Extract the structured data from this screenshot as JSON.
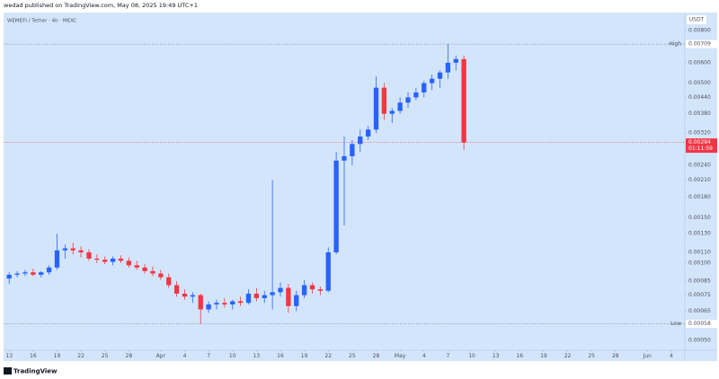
{
  "header": "wedad published on TradingView.com, May 08, 2025 19:49 UTC+1",
  "footer": "TradingView",
  "chart_data": {
    "type": "candlestick",
    "title": "WEMEFI / Tether · 4h · MEXC",
    "y_unit": "USDT",
    "log_scale": true,
    "grid": false,
    "background": "#d3e5fb",
    "up_color": "#2962ff",
    "down_color": "#f23645",
    "x": [
      0,
      1,
      2,
      3,
      4,
      5,
      6,
      7,
      8,
      9,
      10,
      11,
      12,
      13,
      14,
      15,
      16,
      17,
      18,
      19,
      20,
      21,
      22,
      23,
      24,
      25,
      26,
      27,
      28,
      29,
      30,
      31,
      32,
      33,
      34,
      35,
      36,
      37,
      38,
      39,
      40,
      41,
      42,
      43,
      44,
      45,
      46,
      47,
      48,
      49,
      50,
      51,
      52,
      53,
      54,
      55,
      56,
      57
    ],
    "open": [
      0.00087,
      0.0009,
      0.00091,
      0.00092,
      0.0009,
      0.00092,
      0.00096,
      0.00112,
      0.00114,
      0.00112,
      0.0011,
      0.00104,
      0.00103,
      0.00101,
      0.00104,
      0.00102,
      0.00098,
      0.00096,
      0.00093,
      0.00091,
      0.00088,
      0.00082,
      0.00076,
      0.00074,
      0.00075,
      0.00066,
      0.00069,
      0.0007,
      0.00069,
      0.00071,
      0.0007,
      0.00076,
      0.00073,
      0.00075,
      0.00077,
      0.0008,
      0.00068,
      0.00075,
      0.00082,
      0.00079,
      0.00078,
      0.0011,
      0.0025,
      0.0026,
      0.0029,
      0.0031,
      0.0033,
      0.0048,
      0.0038,
      0.0039,
      0.0042,
      0.0044,
      0.0046,
      0.005,
      0.0052,
      0.0055,
      0.006,
      0.0062
    ],
    "high": [
      0.00092,
      0.00093,
      0.00094,
      0.00095,
      0.00093,
      0.00098,
      0.0013,
      0.00118,
      0.0012,
      0.00116,
      0.00113,
      0.00108,
      0.00106,
      0.00106,
      0.00107,
      0.00105,
      0.00102,
      0.00099,
      0.00097,
      0.00094,
      0.00091,
      0.00085,
      0.00079,
      0.00077,
      0.00076,
      0.00071,
      0.00072,
      0.00073,
      0.00072,
      0.00074,
      0.00079,
      0.0008,
      0.00078,
      0.0021,
      0.00084,
      0.00083,
      0.00078,
      0.00086,
      0.00084,
      0.00081,
      0.00115,
      0.0027,
      0.0031,
      0.003,
      0.0033,
      0.0034,
      0.0053,
      0.005,
      0.004,
      0.0044,
      0.0046,
      0.0048,
      0.0051,
      0.0054,
      0.0056,
      0.00709,
      0.0064,
      0.0064
    ],
    "low": [
      0.00083,
      0.00088,
      0.00089,
      0.00089,
      0.00088,
      0.0009,
      0.00094,
      0.00104,
      0.00108,
      0.00105,
      0.00102,
      0.001,
      0.00099,
      0.00098,
      0.001,
      0.00096,
      0.00094,
      0.00091,
      0.00089,
      0.00086,
      0.0008,
      0.00074,
      0.00072,
      0.0007,
      0.00058,
      0.00064,
      0.00066,
      0.00067,
      0.00066,
      0.00068,
      0.00069,
      0.00071,
      0.0007,
      0.00066,
      0.00074,
      0.00064,
      0.00065,
      0.00073,
      0.00076,
      0.00075,
      0.00077,
      0.00108,
      0.0014,
      0.0024,
      0.0027,
      0.003,
      0.0032,
      0.0036,
      0.0035,
      0.0038,
      0.004,
      0.0043,
      0.0044,
      0.0047,
      0.0048,
      0.0052,
      0.0056,
      0.00275
    ],
    "close": [
      0.0009,
      0.00091,
      0.00092,
      0.0009,
      0.00092,
      0.00096,
      0.00112,
      0.00114,
      0.00112,
      0.0011,
      0.00104,
      0.00103,
      0.00101,
      0.00104,
      0.00102,
      0.00098,
      0.00096,
      0.00093,
      0.00091,
      0.00088,
      0.00082,
      0.00076,
      0.00074,
      0.00075,
      0.00066,
      0.00069,
      0.0007,
      0.00069,
      0.00071,
      0.0007,
      0.00076,
      0.00073,
      0.00075,
      0.00077,
      0.0008,
      0.00068,
      0.00075,
      0.00082,
      0.00079,
      0.00078,
      0.0011,
      0.0025,
      0.0026,
      0.0029,
      0.0031,
      0.0033,
      0.0048,
      0.0038,
      0.0039,
      0.0042,
      0.0044,
      0.0046,
      0.005,
      0.0052,
      0.0055,
      0.006,
      0.0062,
      0.00294
    ],
    "xlim": [
      -0.7,
      84.7
    ],
    "xticks": [
      {
        "value": 0,
        "label": "13"
      },
      {
        "value": 3,
        "label": "16"
      },
      {
        "value": 6,
        "label": "19"
      },
      {
        "value": 9,
        "label": "22"
      },
      {
        "value": 12,
        "label": "25"
      },
      {
        "value": 15,
        "label": "28"
      },
      {
        "value": 19,
        "label": "Apr"
      },
      {
        "value": 22,
        "label": "4"
      },
      {
        "value": 25,
        "label": "7"
      },
      {
        "value": 28,
        "label": "10"
      },
      {
        "value": 31,
        "label": "13"
      },
      {
        "value": 34,
        "label": "16"
      },
      {
        "value": 37,
        "label": "19"
      },
      {
        "value": 40,
        "label": "22"
      },
      {
        "value": 43,
        "label": "25"
      },
      {
        "value": 46,
        "label": "28"
      },
      {
        "value": 49,
        "label": "May"
      },
      {
        "value": 52,
        "label": "4"
      },
      {
        "value": 55,
        "label": "7"
      },
      {
        "value": 58,
        "label": "10"
      },
      {
        "value": 61,
        "label": "13"
      },
      {
        "value": 64,
        "label": "16"
      },
      {
        "value": 67,
        "label": "19"
      },
      {
        "value": 70,
        "label": "22"
      },
      {
        "value": 73,
        "label": "25"
      },
      {
        "value": 76,
        "label": "28"
      },
      {
        "value": 80,
        "label": "Jun"
      },
      {
        "value": 83,
        "label": "4"
      }
    ],
    "ylim": [
      0.000458,
      0.0094
    ],
    "yticks": [
      {
        "value": 0.008,
        "label": "0.00800"
      },
      {
        "value": 0.006,
        "label": "0.00600"
      },
      {
        "value": 0.005,
        "label": "0.00500"
      },
      {
        "value": 0.0044,
        "label": "0.00440"
      },
      {
        "value": 0.0038,
        "label": "0.00380"
      },
      {
        "value": 0.0032,
        "label": "0.00320"
      },
      {
        "value": 0.0024,
        "label": "0.00240"
      },
      {
        "value": 0.0021,
        "label": "0.00210"
      },
      {
        "value": 0.0018,
        "label": "0.00180"
      },
      {
        "value": 0.0015,
        "label": "0.00150"
      },
      {
        "value": 0.0013,
        "label": "0.00130"
      },
      {
        "value": 0.0011,
        "label": "0.00110"
      },
      {
        "value": 0.001,
        "label": "0.00100"
      },
      {
        "value": 0.00085,
        "label": "0.00085"
      },
      {
        "value": 0.00075,
        "label": "0.00075"
      },
      {
        "value": 0.00065,
        "label": "0.00065"
      },
      {
        "value": 0.0005,
        "label": "0.00050"
      }
    ],
    "price_lines": [
      {
        "name": "High",
        "value": 0.00709,
        "label": "0.00709"
      },
      {
        "name": "Low",
        "value": 0.00058,
        "label": "0.00058"
      }
    ],
    "last_price": {
      "value": 0.00294,
      "label": "0.00294",
      "countdown": "01:11:59"
    }
  }
}
